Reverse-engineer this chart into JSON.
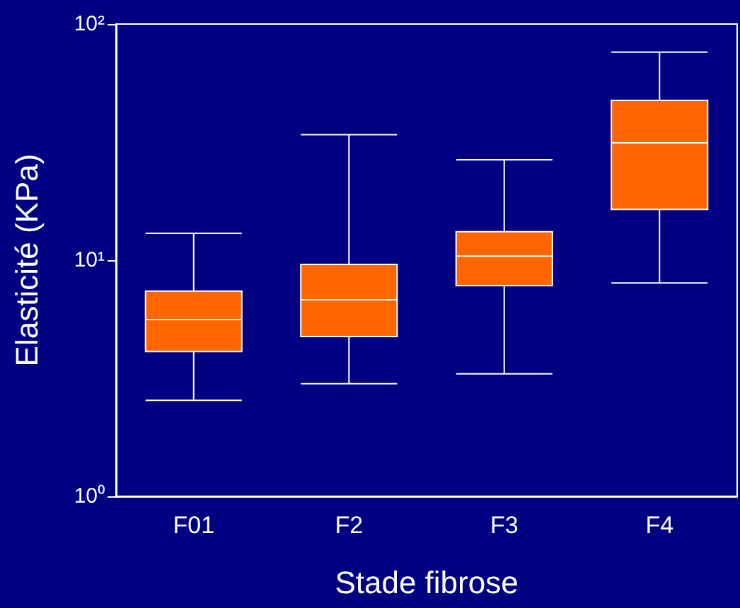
{
  "chart_data": {
    "type": "box",
    "xlabel": "Stade fibrose",
    "ylabel": "Elasticité (KPa)",
    "categories": [
      "F01",
      "F2",
      "F3",
      "F4"
    ],
    "color": "#ff6600",
    "log": "y",
    "ylim": [
      1,
      100
    ],
    "yticks": [
      {
        "value": 1,
        "label": "10⁰"
      },
      {
        "value": 10,
        "label": "10¹"
      },
      {
        "value": 100,
        "label": "10²"
      }
    ],
    "grid": false,
    "boxes": [
      {
        "low": 2.55,
        "q1": 4.1,
        "median": 5.6,
        "q3": 7.4,
        "high": 13
      },
      {
        "low": 3.0,
        "q1": 4.75,
        "median": 6.8,
        "q3": 9.6,
        "high": 34
      },
      {
        "low": 3.3,
        "q1": 7.8,
        "median": 10.4,
        "q3": 13.2,
        "high": 26.6
      },
      {
        "low": 8.0,
        "q1": 16.4,
        "median": 31.4,
        "q3": 47.5,
        "high": 76
      }
    ]
  }
}
